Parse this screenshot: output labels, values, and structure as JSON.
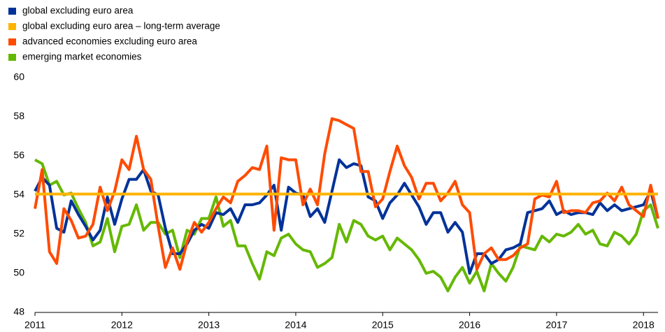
{
  "chart_data": {
    "type": "line",
    "x": [
      2011,
      2011.083,
      2011.167,
      2011.25,
      2011.333,
      2011.417,
      2011.5,
      2011.583,
      2011.667,
      2011.75,
      2011.833,
      2011.917,
      2012,
      2012.083,
      2012.167,
      2012.25,
      2012.333,
      2012.417,
      2012.5,
      2012.583,
      2012.667,
      2012.75,
      2012.833,
      2012.917,
      2013,
      2013.083,
      2013.167,
      2013.25,
      2013.333,
      2013.417,
      2013.5,
      2013.583,
      2013.667,
      2013.75,
      2013.833,
      2013.917,
      2014,
      2014.083,
      2014.167,
      2014.25,
      2014.333,
      2014.417,
      2014.5,
      2014.583,
      2014.667,
      2014.75,
      2014.833,
      2014.917,
      2015,
      2015.083,
      2015.167,
      2015.25,
      2015.333,
      2015.417,
      2015.5,
      2015.583,
      2015.667,
      2015.75,
      2015.833,
      2015.917,
      2016,
      2016.083,
      2016.167,
      2016.25,
      2016.333,
      2016.417,
      2016.5,
      2016.583,
      2016.667,
      2016.75,
      2016.833,
      2016.917,
      2017,
      2017.083,
      2017.167,
      2017.25,
      2017.333,
      2017.417,
      2017.5,
      2017.583,
      2017.667,
      2017.75,
      2017.833,
      2017.917,
      2018,
      2018.083,
      2018.167
    ],
    "series": [
      {
        "name": "global excluding euro area",
        "color": "#003299",
        "values": [
          54.2,
          54.9,
          54.5,
          52.3,
          52.1,
          53.7,
          53.0,
          52.4,
          51.7,
          52.2,
          53.9,
          52.5,
          53.8,
          54.8,
          54.8,
          55.3,
          54.2,
          54.0,
          52.3,
          51.0,
          51.0,
          51.5,
          52.2,
          52.5,
          52.3,
          53.1,
          53.0,
          53.3,
          52.6,
          53.5,
          53.5,
          53.6,
          54.0,
          54.5,
          52.2,
          54.4,
          54.1,
          54.0,
          52.9,
          53.3,
          52.6,
          54.2,
          55.8,
          55.4,
          55.6,
          55.5,
          53.9,
          53.7,
          52.8,
          53.6,
          54.0,
          54.6,
          54.0,
          53.4,
          52.5,
          53.1,
          53.1,
          52.1,
          52.6,
          52.1,
          50.0,
          51.0,
          51.0,
          50.5,
          50.7,
          51.2,
          51.3,
          51.5,
          53.1,
          53.2,
          53.3,
          53.7,
          53.0,
          53.2,
          53.0,
          53.1,
          53.1,
          53.0,
          53.6,
          53.2,
          53.5,
          53.2,
          53.3,
          53.4,
          53.5,
          54.2,
          52.8
        ]
      },
      {
        "name": "global excluding euro area – long-term average",
        "color": "#ffb400",
        "value": 54.05
      },
      {
        "name": "advanced economies excluding euro area",
        "color": "#ff4b00",
        "values": [
          53.3,
          55.3,
          51.1,
          50.5,
          53.3,
          52.7,
          51.8,
          51.9,
          52.5,
          54.4,
          53.2,
          54.2,
          55.8,
          55.3,
          57.0,
          55.3,
          54.8,
          52.4,
          50.3,
          51.3,
          50.2,
          51.6,
          52.6,
          52.1,
          52.6,
          53.3,
          53.9,
          53.6,
          54.7,
          55.0,
          55.4,
          55.3,
          56.5,
          52.2,
          55.9,
          55.8,
          55.8,
          53.5,
          54.3,
          53.5,
          56.1,
          57.9,
          57.8,
          57.6,
          57.4,
          55.2,
          55.2,
          53.4,
          53.8,
          55.2,
          56.5,
          55.5,
          54.9,
          53.8,
          54.6,
          54.6,
          53.7,
          54.1,
          54.7,
          53.5,
          53.1,
          50.2,
          51.0,
          51.3,
          50.7,
          50.7,
          50.9,
          51.3,
          51.5,
          53.8,
          54.0,
          53.9,
          54.7,
          53.1,
          53.2,
          53.2,
          53.1,
          53.6,
          53.7,
          54.1,
          53.7,
          54.4,
          53.5,
          53.2,
          52.9,
          54.5,
          52.8
        ]
      },
      {
        "name": "emerging market economies",
        "color": "#65b800",
        "values": [
          55.8,
          55.6,
          54.5,
          54.7,
          54.0,
          54.1,
          53.3,
          52.6,
          51.4,
          51.6,
          52.8,
          51.1,
          52.4,
          52.5,
          53.5,
          52.2,
          52.6,
          52.6,
          52.0,
          52.2,
          50.8,
          52.2,
          52.0,
          52.8,
          52.8,
          53.9,
          52.4,
          52.7,
          51.4,
          51.4,
          50.5,
          49.7,
          51.1,
          50.9,
          51.8,
          52.0,
          51.5,
          51.2,
          51.1,
          50.3,
          50.5,
          50.8,
          52.5,
          51.6,
          52.7,
          52.5,
          51.9,
          51.7,
          51.9,
          51.2,
          51.8,
          51.5,
          51.2,
          50.7,
          50.0,
          50.1,
          49.8,
          49.1,
          49.8,
          50.3,
          49.5,
          50.1,
          49.1,
          50.5,
          50.0,
          49.6,
          50.3,
          51.4,
          51.3,
          51.2,
          51.9,
          51.6,
          52.0,
          51.9,
          52.1,
          52.5,
          52.0,
          52.2,
          51.5,
          51.4,
          52.1,
          51.9,
          51.5,
          52.0,
          53.2,
          53.5,
          52.3
        ]
      }
    ],
    "xlim": [
      2011,
      2018.167
    ],
    "xticks": [
      2011,
      2012,
      2013,
      2014,
      2015,
      2016,
      2017,
      2018
    ],
    "ylim": [
      48,
      60
    ],
    "yticks": [
      48,
      50,
      52,
      54,
      56,
      58,
      60
    ],
    "grid": false
  }
}
